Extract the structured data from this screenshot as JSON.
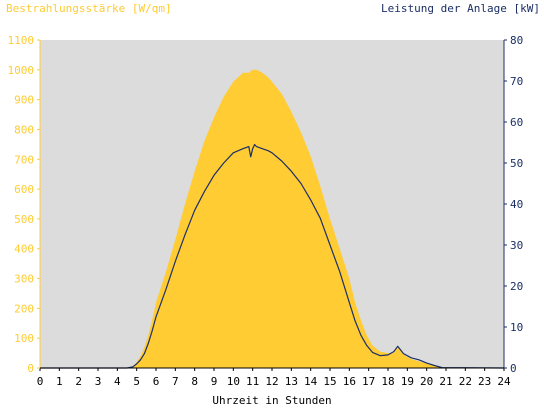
{
  "chart_data": {
    "type": "area",
    "title_left": "Bestrahlungsstärke [W/qm]",
    "title_right": "Leistung der Anlage [kW]",
    "xlabel": "Uhrzeit in Stunden",
    "xlim": [
      0,
      24
    ],
    "x_ticks": [
      "0",
      "1",
      "2",
      "3",
      "4",
      "5",
      "6",
      "7",
      "8",
      "9",
      "10",
      "11",
      "12",
      "13",
      "14",
      "15",
      "16",
      "17",
      "18",
      "19",
      "20",
      "21",
      "22",
      "23",
      "24"
    ],
    "y_left_lim": [
      0,
      1100
    ],
    "y_left_ticks": [
      "0",
      "100",
      "200",
      "300",
      "400",
      "500",
      "600",
      "700",
      "800",
      "900",
      "1000",
      "1100"
    ],
    "y_right_lim": [
      0,
      80
    ],
    "y_right_ticks": [
      "0",
      "10",
      "20",
      "30",
      "40",
      "50",
      "60",
      "70",
      "80"
    ],
    "colors": {
      "irradiance": "#ffcc33",
      "power": "#1c2f66",
      "plot_bg": "#dcdcdc",
      "left_axis": "#ffcc33",
      "right_axis": "#1c2f66"
    },
    "series": [
      {
        "axis": "left",
        "style": "area",
        "x": [
          0,
          4.5,
          4.8,
          5.0,
          5.2,
          5.4,
          5.6,
          5.8,
          6.0,
          6.5,
          7.0,
          7.5,
          8.0,
          8.5,
          9.0,
          9.5,
          10.0,
          10.5,
          10.8,
          11.0,
          11.2,
          11.5,
          11.8,
          12.0,
          12.5,
          13.0,
          13.5,
          14.0,
          14.5,
          15.0,
          15.5,
          16.0,
          16.3,
          16.6,
          16.9,
          17.2,
          17.6,
          18.0,
          18.3,
          18.5,
          18.8,
          19.2,
          19.6,
          20.0,
          20.4,
          20.8,
          24
        ],
        "values": [
          0,
          0,
          5,
          20,
          40,
          70,
          110,
          160,
          220,
          320,
          430,
          550,
          660,
          760,
          840,
          910,
          960,
          990,
          990,
          1000,
          1000,
          990,
          975,
          960,
          920,
          860,
          790,
          710,
          610,
          500,
          400,
          300,
          220,
          160,
          110,
          75,
          55,
          50,
          50,
          70,
          45,
          30,
          22,
          15,
          8,
          2,
          0
        ]
      },
      {
        "axis": "right",
        "style": "line",
        "x": [
          0,
          4.5,
          4.8,
          5.0,
          5.2,
          5.4,
          5.6,
          5.8,
          6.0,
          6.5,
          7.0,
          7.5,
          8.0,
          8.5,
          9.0,
          9.5,
          10.0,
          10.5,
          10.8,
          10.9,
          11.0,
          11.1,
          11.2,
          11.5,
          11.8,
          12.0,
          12.5,
          13.0,
          13.5,
          14.0,
          14.5,
          15.0,
          15.5,
          16.0,
          16.3,
          16.6,
          16.9,
          17.2,
          17.6,
          18.0,
          18.3,
          18.5,
          18.8,
          19.2,
          19.6,
          20.0,
          20.4,
          20.8,
          24
        ],
        "values": [
          0,
          0,
          0.3,
          1.0,
          2.0,
          3.5,
          6.0,
          9.0,
          12.5,
          19.0,
          26.0,
          32.5,
          38.5,
          43.0,
          47.0,
          50.0,
          52.5,
          53.5,
          54.0,
          51.5,
          53.5,
          54.5,
          54.0,
          53.5,
          53.0,
          52.5,
          50.5,
          48.0,
          45.0,
          41.0,
          36.5,
          30.0,
          23.5,
          16.0,
          11.5,
          8.0,
          5.5,
          3.8,
          3.0,
          3.2,
          4.0,
          5.3,
          3.5,
          2.5,
          2.0,
          1.2,
          0.6,
          0.1,
          0
        ]
      }
    ]
  }
}
